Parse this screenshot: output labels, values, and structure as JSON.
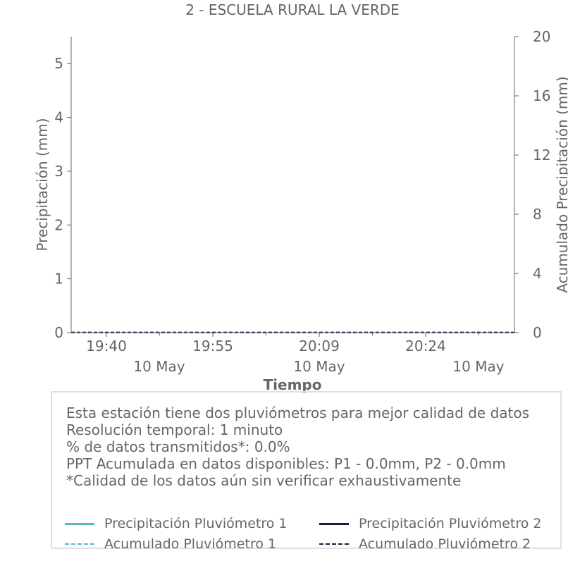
{
  "chart_data": {
    "type": "line",
    "title": "2 - ESCUELA RURAL LA VERDE",
    "xlabel": "Tiempo",
    "ylabel": "Precipitación (mm)",
    "y2label": "Acumulado Precipitación (mm)",
    "ylim": [
      0,
      5.5
    ],
    "y2lim": [
      0,
      20
    ],
    "yticks": [
      "0",
      "1",
      "2",
      "3",
      "4",
      "5"
    ],
    "y2ticks": [
      "0",
      "4",
      "8",
      "12",
      "16",
      "20"
    ],
    "xticks": [
      {
        "time": "19:40",
        "date": "10 May"
      },
      {
        "time": "19:55",
        "date": "10 May"
      },
      {
        "time": "20:09",
        "date": "10 May"
      },
      {
        "time": "20:24",
        "date": "10 May"
      }
    ],
    "series": [
      {
        "name": "Precipitación Pluviómetro 1",
        "color": "#5ab4c0",
        "style": "solid",
        "values": []
      },
      {
        "name": "Precipitación Pluviómetro 2",
        "color": "#1c1c3a",
        "style": "solid",
        "values": []
      },
      {
        "name": "Acumulado Pluviómetro 1",
        "color": "#5ab4c0",
        "style": "dashed",
        "values": [
          0,
          0
        ]
      },
      {
        "name": "Acumulado Pluviómetro 2",
        "color": "#1c1c3a",
        "style": "dashed",
        "values": [
          0,
          0
        ]
      }
    ],
    "legend_position": "bottom"
  },
  "info": {
    "lines": [
      "Esta estación tiene dos pluviómetros para mejor calidad de datos",
      "Resolución temporal: 1 minuto",
      "% de datos transmitidos*: 0.0%",
      "PPT Acumulada en datos disponibles: P1 - 0.0mm, P2 - 0.0mm",
      "*Calidad de los datos aún sin verificar exhaustivamente"
    ]
  }
}
